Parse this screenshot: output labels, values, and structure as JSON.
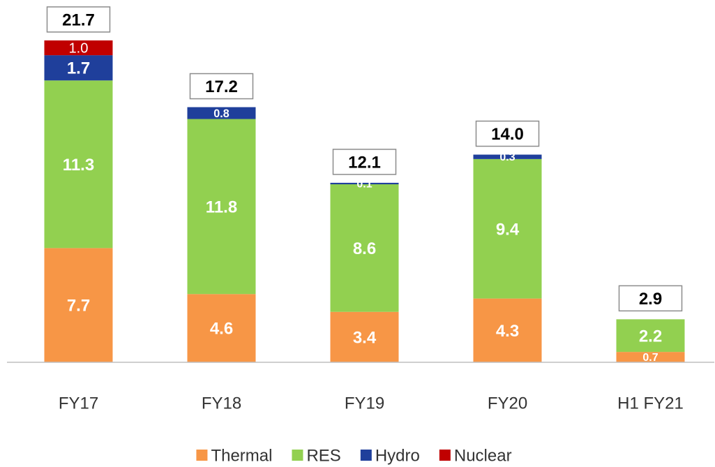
{
  "chart_data": {
    "type": "stacked_bar",
    "categories": [
      "FY17",
      "FY18",
      "FY19",
      "FY20",
      "H1 FY21"
    ],
    "series": [
      {
        "name": "Thermal",
        "color": "#f79646",
        "values": [
          7.7,
          4.6,
          3.4,
          4.3,
          0.7
        ]
      },
      {
        "name": "RES",
        "color": "#92d050",
        "values": [
          11.3,
          11.8,
          8.6,
          9.4,
          2.2
        ]
      },
      {
        "name": "Hydro",
        "color": "#1f3f9b",
        "values": [
          1.7,
          0.8,
          0.1,
          0.3,
          null
        ]
      },
      {
        "name": "Nuclear",
        "color": "#c00000",
        "values": [
          1.0,
          null,
          null,
          null,
          null
        ],
        "value_labels": [
          "1.0",
          null,
          null,
          null,
          null
        ]
      }
    ],
    "totals": [
      21.7,
      17.2,
      12.1,
      14.0,
      2.9
    ],
    "totals_labels": [
      "21.7",
      "17.2",
      "12.1",
      "14.0",
      "2.9"
    ],
    "ylim": [
      0,
      24
    ],
    "legend": "bottom"
  }
}
